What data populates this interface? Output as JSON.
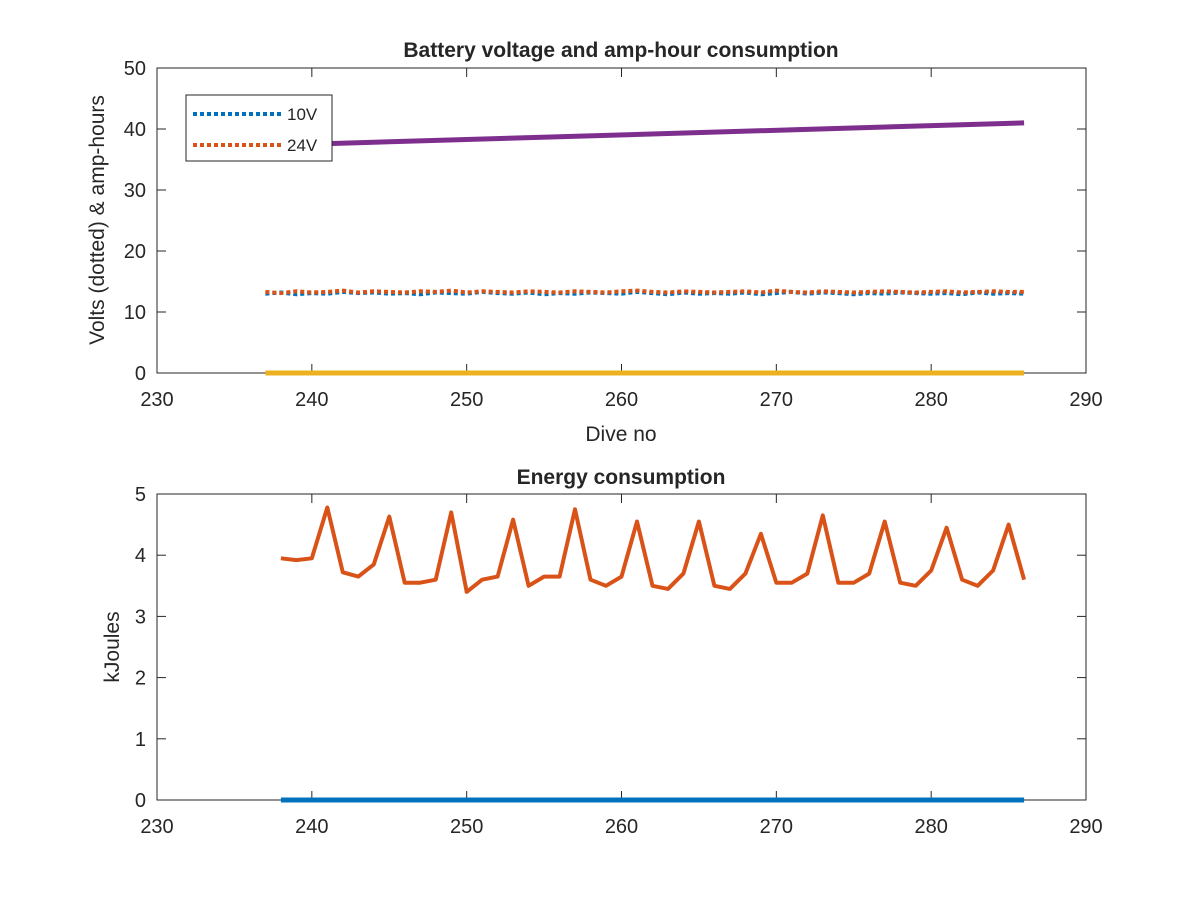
{
  "chart_data": [
    {
      "type": "line",
      "title": "Battery voltage and amp-hour consumption",
      "xlabel": "Dive no",
      "ylabel": "Volts (dotted) & amp-hours",
      "xlim": [
        230,
        290
      ],
      "ylim": [
        0,
        50
      ],
      "xticks": [
        230,
        240,
        250,
        260,
        270,
        280,
        290
      ],
      "yticks": [
        0,
        10,
        20,
        30,
        40,
        50
      ],
      "legend_position": "top-left",
      "series": [
        {
          "name": "10V",
          "style": "dotted",
          "color": "#0072BD",
          "x": [
            237,
            238,
            239,
            240,
            241,
            242,
            243,
            244,
            245,
            246,
            247,
            248,
            249,
            250,
            251,
            252,
            253,
            254,
            255,
            256,
            257,
            258,
            259,
            260,
            261,
            262,
            263,
            264,
            265,
            266,
            267,
            268,
            269,
            270,
            271,
            272,
            273,
            274,
            275,
            276,
            277,
            278,
            279,
            280,
            281,
            282,
            283,
            284,
            285,
            286
          ],
          "y": [
            13.0,
            13.2,
            12.9,
            13.1,
            13.0,
            13.3,
            13.1,
            13.2,
            13.0,
            13.1,
            12.9,
            13.2,
            13.1,
            13.0,
            13.3,
            13.1,
            13.0,
            13.2,
            12.9,
            13.1,
            13.0,
            13.2,
            13.1,
            13.0,
            13.3,
            13.1,
            12.9,
            13.2,
            13.0,
            13.1,
            13.0,
            13.2,
            12.9,
            13.1,
            13.3,
            13.0,
            13.2,
            13.1,
            12.9,
            13.1,
            13.0,
            13.2,
            13.1,
            13.0,
            13.1,
            12.9,
            13.2,
            13.0,
            13.1,
            13.0
          ]
        },
        {
          "name": "24V",
          "style": "dotted",
          "color": "#D95319",
          "x": [
            237,
            238,
            239,
            240,
            241,
            242,
            243,
            244,
            245,
            246,
            247,
            248,
            249,
            250,
            251,
            252,
            253,
            254,
            255,
            256,
            257,
            258,
            259,
            260,
            261,
            262,
            263,
            264,
            265,
            266,
            267,
            268,
            269,
            270,
            271,
            272,
            273,
            274,
            275,
            276,
            277,
            278,
            279,
            280,
            281,
            282,
            283,
            284,
            285,
            286
          ],
          "y": [
            13.3,
            13.1,
            13.4,
            13.2,
            13.3,
            13.5,
            13.2,
            13.4,
            13.3,
            13.2,
            13.4,
            13.3,
            13.5,
            13.2,
            13.4,
            13.3,
            13.2,
            13.4,
            13.3,
            13.2,
            13.4,
            13.3,
            13.2,
            13.4,
            13.5,
            13.3,
            13.2,
            13.4,
            13.3,
            13.2,
            13.3,
            13.4,
            13.2,
            13.5,
            13.3,
            13.2,
            13.4,
            13.3,
            13.2,
            13.3,
            13.4,
            13.3,
            13.2,
            13.3,
            13.4,
            13.2,
            13.3,
            13.4,
            13.3,
            13.3
          ]
        },
        {
          "style": "solid",
          "color": "#7E2F8E",
          "x": [
            237,
            286
          ],
          "y": [
            37.3,
            41.0
          ]
        },
        {
          "style": "solid",
          "color": "#EDB120",
          "x": [
            237,
            286
          ],
          "y": [
            0,
            0
          ]
        }
      ]
    },
    {
      "type": "line",
      "title": "Energy consumption",
      "ylabel": "kJoules",
      "xlim": [
        230,
        290
      ],
      "ylim": [
        0,
        5
      ],
      "xticks": [
        230,
        240,
        250,
        260,
        270,
        280,
        290
      ],
      "yticks": [
        0,
        1,
        2,
        3,
        4,
        5
      ],
      "series": [
        {
          "style": "solid",
          "color": "#0072BD",
          "x": [
            238,
            286
          ],
          "y": [
            0,
            0
          ]
        },
        {
          "style": "solid",
          "color": "#D95319",
          "x": [
            238,
            239,
            240,
            241,
            242,
            243,
            244,
            245,
            246,
            247,
            248,
            249,
            250,
            251,
            252,
            253,
            254,
            255,
            256,
            257,
            258,
            259,
            260,
            261,
            262,
            263,
            264,
            265,
            266,
            267,
            268,
            269,
            270,
            271,
            272,
            273,
            274,
            275,
            276,
            277,
            278,
            279,
            280,
            281,
            282,
            283,
            284,
            285,
            286
          ],
          "y": [
            3.95,
            3.92,
            3.95,
            4.78,
            3.72,
            3.65,
            3.85,
            4.63,
            3.55,
            3.55,
            3.6,
            4.7,
            3.4,
            3.6,
            3.65,
            4.58,
            3.5,
            3.65,
            3.65,
            4.75,
            3.6,
            3.5,
            3.65,
            4.55,
            3.5,
            3.45,
            3.7,
            4.55,
            3.5,
            3.45,
            3.7,
            4.35,
            3.55,
            3.55,
            3.7,
            4.65,
            3.55,
            3.55,
            3.7,
            4.55,
            3.55,
            3.5,
            3.75,
            4.45,
            3.6,
            3.5,
            3.75,
            4.5,
            3.6
          ]
        }
      ]
    }
  ]
}
